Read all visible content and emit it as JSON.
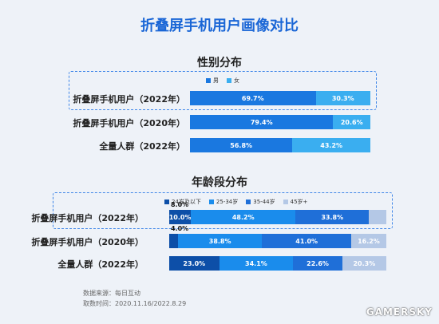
{
  "page": {
    "title": "折叠屏手机用户画像对比",
    "source_label": "数据来源：每日互动",
    "period_label": "取数时间：2020.11.16/2022.8.29",
    "watermark": "GAMERSKY"
  },
  "chart_data": [
    {
      "type": "bar",
      "orientation": "horizontal-stacked-100",
      "title": "性别分布",
      "legend_placement": "top-center",
      "categories": [
        "折叠屏手机用户（2022年）",
        "折叠屏手机用户（2020年）",
        "全量人群（2022年）"
      ],
      "series": [
        {
          "name": "男",
          "color": "#1a78e0",
          "values": [
            69.7,
            79.4,
            56.8
          ]
        },
        {
          "name": "女",
          "color": "#3aaef0",
          "values": [
            30.3,
            20.6,
            43.2
          ]
        }
      ],
      "value_labels": [
        [
          "69.7%",
          "30.3%"
        ],
        [
          "79.4%",
          "20.6%"
        ],
        [
          "56.8%",
          "43.2%"
        ]
      ]
    },
    {
      "type": "bar",
      "orientation": "horizontal-stacked-100",
      "title": "年龄段分布",
      "legend_placement": "top-center",
      "categories": [
        "折叠屏手机用户（2022年）",
        "折叠屏手机用户（2020年）",
        "全量人群（2022年）"
      ],
      "series": [
        {
          "name": "24岁及以下",
          "color": "#0d4fa8",
          "values": [
            10.0,
            4.0,
            23.0
          ]
        },
        {
          "name": "25-34岁",
          "color": "#1a8cec",
          "values": [
            48.2,
            38.8,
            34.1
          ]
        },
        {
          "name": "35-44岁",
          "color": "#1f6fd8",
          "values": [
            33.8,
            41.0,
            22.6
          ]
        },
        {
          "name": "45岁+",
          "color": "#b4c8e6",
          "values": [
            8.0,
            16.2,
            20.3
          ]
        }
      ],
      "value_labels": [
        [
          "10.0%",
          "48.2%",
          "33.8%",
          "8.0%"
        ],
        [
          "4.0%",
          "38.8%",
          "41.0%",
          "16.2%"
        ],
        [
          "23.0%",
          "34.1%",
          "22.6%",
          "20.3%"
        ]
      ]
    }
  ]
}
